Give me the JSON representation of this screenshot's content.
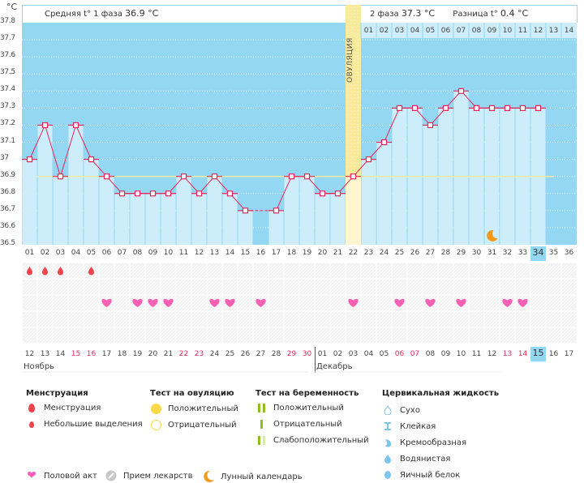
{
  "chart_data": {
    "type": "line",
    "title": "",
    "ylabel": "°C",
    "ylim": [
      36.5,
      37.8
    ],
    "yticks": [
      37.8,
      37.7,
      37.6,
      37.5,
      37.4,
      37.3,
      37.2,
      37.1,
      37.0,
      36.9,
      36.8,
      36.7,
      36.6,
      36.5
    ],
    "ytick_labels": [
      "37.8",
      "37.7",
      "37.6",
      "37.5",
      "37.4",
      "37.3",
      "37.2",
      "37.1",
      "37",
      "36.9",
      "36.8",
      "36.7",
      "36.6",
      "36.5"
    ],
    "grid": true,
    "cycle_days": [
      "01",
      "02",
      "03",
      "04",
      "05",
      "06",
      "07",
      "08",
      "09",
      "10",
      "11",
      "12",
      "13",
      "14",
      "15",
      "16",
      "17",
      "18",
      "19",
      "20",
      "21",
      "22",
      "23",
      "24",
      "25",
      "26",
      "27",
      "28",
      "29",
      "30",
      "31",
      "32",
      "33",
      "34",
      "35",
      "36"
    ],
    "series": [
      {
        "name": "Базальная температура",
        "color": "#e8265a",
        "values": [
          37.0,
          37.2,
          36.9,
          37.2,
          37.0,
          36.9,
          36.8,
          36.8,
          36.8,
          36.8,
          36.9,
          36.8,
          36.9,
          36.8,
          36.7,
          null,
          36.7,
          36.9,
          36.9,
          36.8,
          36.8,
          36.9,
          37.0,
          37.1,
          37.3,
          37.3,
          37.2,
          37.3,
          37.4,
          37.3,
          37.3,
          37.3,
          37.3,
          37.3,
          null,
          null
        ]
      }
    ],
    "coverline": 36.9,
    "ovulation_day": 22,
    "phase2_day_labels": [
      "01",
      "02",
      "03",
      "04",
      "05",
      "06",
      "07",
      "08",
      "09",
      "10",
      "11",
      "12",
      "13",
      "14"
    ],
    "today_cycle_day": 34,
    "menstruation_days": [
      1,
      2,
      3,
      5
    ],
    "intercourse_days": [
      6,
      8,
      9,
      10,
      13,
      14,
      16,
      22,
      25,
      27,
      29,
      32,
      33
    ],
    "lunar_day": 31
  },
  "header": {
    "unit": "°C",
    "phase1_label": "Средняя t° 1 фаза",
    "phase1_value": "36.9 °C",
    "phase2_label": "2 фаза",
    "phase2_value": "37.3 °C",
    "diff_label": "Разница t°",
    "diff_value": "0.4 °C",
    "ovulation_label": "ОВУЛЯЦИЯ"
  },
  "calendar": {
    "dates": [
      "12",
      "13",
      "14",
      "15",
      "16",
      "17",
      "18",
      "19",
      "20",
      "21",
      "22",
      "23",
      "24",
      "25",
      "26",
      "27",
      "28",
      "29",
      "30",
      "01",
      "02",
      "03",
      "04",
      "05",
      "06",
      "07",
      "08",
      "09",
      "10",
      "11",
      "12",
      "13",
      "14",
      "15",
      "16",
      "17"
    ],
    "weekend_flags": [
      false,
      false,
      false,
      true,
      true,
      false,
      false,
      false,
      false,
      false,
      true,
      true,
      false,
      false,
      false,
      false,
      false,
      true,
      true,
      false,
      false,
      false,
      false,
      false,
      true,
      true,
      false,
      false,
      false,
      false,
      false,
      true,
      true,
      false,
      false,
      false
    ],
    "today_index": 33,
    "months": [
      {
        "name": "Ноябрь",
        "start_index": 0
      },
      {
        "name": "Декабрь",
        "start_index": 19
      }
    ]
  },
  "legend": {
    "menstruation": {
      "title": "Менструация",
      "items": [
        "Менструация",
        "Небольшие выделения"
      ]
    },
    "ovulation_test": {
      "title": "Тест на овуляцию",
      "items": [
        "Положительный",
        "Отрицательный"
      ]
    },
    "pregnancy_test": {
      "title": "Тест на беременность",
      "items": [
        "Положительный",
        "Отрицательный",
        "Слабоположительный"
      ]
    },
    "cervical_fluid": {
      "title": "Цервикальная жидкость",
      "items": [
        "Сухо",
        "Клейкая",
        "Кремообразная",
        "Водянистая",
        "Яичный белок"
      ]
    },
    "other": [
      "Половой акт",
      "Прием лекарств",
      "Лунный календарь"
    ]
  },
  "colors": {
    "plot_bg": "#93d7f2",
    "bar": "#cdedfb",
    "line": "#e8265a",
    "coverline": "#f3eb9c",
    "ovulation": "#f7eb9a",
    "heart": "#f560b4",
    "drop": "#f0444d",
    "moon": "#f39a1a",
    "weekend": "#e8265a"
  }
}
